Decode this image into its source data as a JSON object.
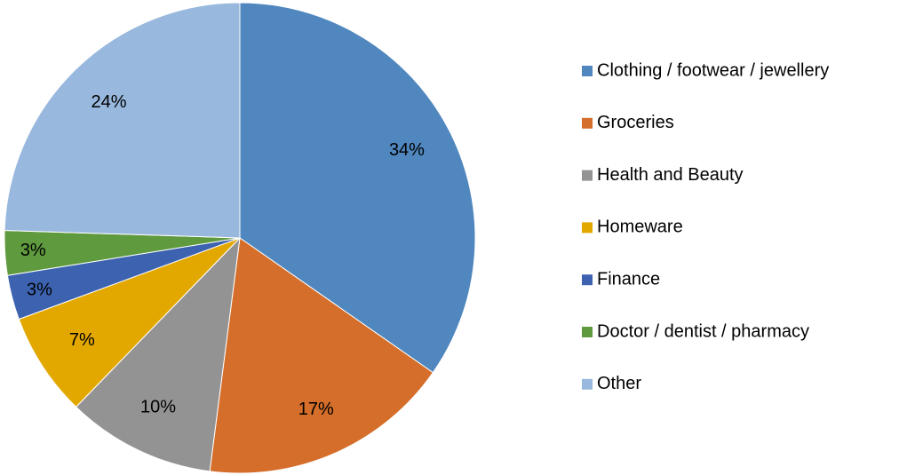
{
  "chart_data": {
    "type": "pie",
    "categories": [
      "Clothing / footwear / jewellery",
      "Groceries",
      "Health and Beauty",
      "Homeware",
      "Finance",
      "Doctor / dentist / pharmacy",
      "Other"
    ],
    "values": [
      34,
      17,
      10,
      7,
      3,
      3,
      24
    ],
    "value_labels": [
      "34%",
      "17%",
      "10%",
      "7%",
      "3%",
      "3%",
      "24%"
    ],
    "colors": [
      "#4f87be",
      "#d46e2a",
      "#939393",
      "#e3a800",
      "#3c62b0",
      "#5f9a3f",
      "#98b8de"
    ],
    "legend": "right"
  }
}
